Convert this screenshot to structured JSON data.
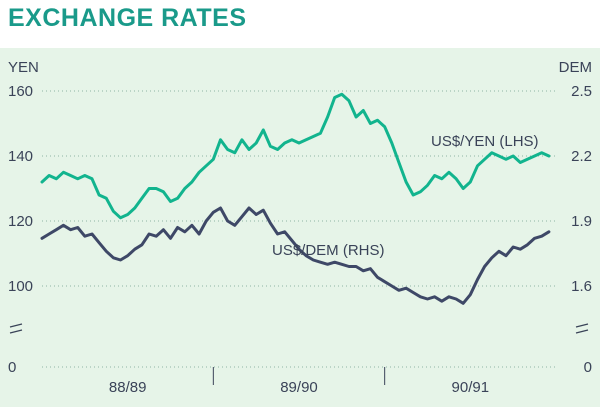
{
  "title": "EXCHANGE RATES",
  "colors": {
    "panel": "#e6f4e8",
    "yen_line": "#12b48e",
    "dem_line": "#3e4867",
    "text": "#3a4358",
    "title": "#1a9a8a"
  },
  "chart_data": {
    "type": "line",
    "title": "EXCHANGE RATES",
    "left_axis": {
      "label": "YEN",
      "ticks": [
        {
          "value": 160,
          "label": "160"
        },
        {
          "value": 140,
          "label": "140"
        },
        {
          "value": 120,
          "label": "120"
        },
        {
          "value": 100,
          "label": "100"
        }
      ],
      "zero_label": "0",
      "break_mark": "="
    },
    "right_axis": {
      "label": "DEM",
      "ticks": [
        {
          "value": 2.5,
          "label": "2.5"
        },
        {
          "value": 2.2,
          "label": "2.2"
        },
        {
          "value": 1.9,
          "label": "1.9"
        },
        {
          "value": 1.6,
          "label": "1.6"
        }
      ],
      "zero_label": "0",
      "break_mark": "="
    },
    "x_axis": {
      "range": [
        0,
        36
      ],
      "period_labels": [
        {
          "label": "88/89",
          "center": 6
        },
        {
          "label": "89/90",
          "center": 18
        },
        {
          "label": "90/91",
          "center": 30
        }
      ],
      "period_dividers": [
        12,
        24
      ]
    },
    "grid": "dotted-horizontal",
    "series": [
      {
        "name": "US$/YEN (LHS)",
        "axis": "left",
        "points": [
          [
            0,
            132
          ],
          [
            0.5,
            134
          ],
          [
            1,
            133
          ],
          [
            1.5,
            135
          ],
          [
            2,
            134
          ],
          [
            2.5,
            133
          ],
          [
            3,
            134
          ],
          [
            3.5,
            133
          ],
          [
            4,
            128
          ],
          [
            4.5,
            127
          ],
          [
            5,
            123
          ],
          [
            5.5,
            121
          ],
          [
            6,
            122
          ],
          [
            6.5,
            124
          ],
          [
            7,
            127
          ],
          [
            7.5,
            130
          ],
          [
            8,
            130
          ],
          [
            8.5,
            129
          ],
          [
            9,
            126
          ],
          [
            9.5,
            127
          ],
          [
            10,
            130
          ],
          [
            10.5,
            132
          ],
          [
            11,
            135
          ],
          [
            11.5,
            137
          ],
          [
            12,
            139
          ],
          [
            12.5,
            145
          ],
          [
            13,
            142
          ],
          [
            13.5,
            141
          ],
          [
            14,
            145
          ],
          [
            14.5,
            142
          ],
          [
            15,
            144
          ],
          [
            15.5,
            148
          ],
          [
            16,
            143
          ],
          [
            16.5,
            142
          ],
          [
            17,
            144
          ],
          [
            17.5,
            145
          ],
          [
            18,
            144
          ],
          [
            18.5,
            145
          ],
          [
            19,
            146
          ],
          [
            19.5,
            147
          ],
          [
            20,
            152
          ],
          [
            20.5,
            158
          ],
          [
            21,
            159
          ],
          [
            21.5,
            157
          ],
          [
            22,
            152
          ],
          [
            22.5,
            154
          ],
          [
            23,
            150
          ],
          [
            23.5,
            151
          ],
          [
            24,
            149
          ],
          [
            24.5,
            144
          ],
          [
            25,
            138
          ],
          [
            25.5,
            132
          ],
          [
            26,
            128
          ],
          [
            26.5,
            129
          ],
          [
            27,
            131
          ],
          [
            27.5,
            134
          ],
          [
            28,
            133
          ],
          [
            28.5,
            135
          ],
          [
            29,
            133
          ],
          [
            29.5,
            130
          ],
          [
            30,
            132
          ],
          [
            30.5,
            137
          ],
          [
            31,
            139
          ],
          [
            31.5,
            141
          ],
          [
            32,
            140
          ],
          [
            32.5,
            139
          ],
          [
            33,
            140
          ],
          [
            33.5,
            138
          ],
          [
            34,
            139
          ],
          [
            34.5,
            140
          ],
          [
            35,
            141
          ],
          [
            35.5,
            140
          ]
        ]
      },
      {
        "name": "US$/DEM (RHS)",
        "axis": "right",
        "points": [
          [
            0,
            1.82
          ],
          [
            0.5,
            1.84
          ],
          [
            1,
            1.86
          ],
          [
            1.5,
            1.88
          ],
          [
            2,
            1.86
          ],
          [
            2.5,
            1.87
          ],
          [
            3,
            1.83
          ],
          [
            3.5,
            1.84
          ],
          [
            4,
            1.8
          ],
          [
            4.5,
            1.76
          ],
          [
            5,
            1.73
          ],
          [
            5.5,
            1.72
          ],
          [
            6,
            1.74
          ],
          [
            6.5,
            1.77
          ],
          [
            7,
            1.79
          ],
          [
            7.5,
            1.84
          ],
          [
            8,
            1.83
          ],
          [
            8.5,
            1.86
          ],
          [
            9,
            1.82
          ],
          [
            9.5,
            1.87
          ],
          [
            10,
            1.85
          ],
          [
            10.5,
            1.88
          ],
          [
            11,
            1.84
          ],
          [
            11.5,
            1.9
          ],
          [
            12,
            1.94
          ],
          [
            12.5,
            1.96
          ],
          [
            13,
            1.9
          ],
          [
            13.5,
            1.88
          ],
          [
            14,
            1.92
          ],
          [
            14.5,
            1.96
          ],
          [
            15,
            1.93
          ],
          [
            15.5,
            1.95
          ],
          [
            16,
            1.89
          ],
          [
            16.5,
            1.84
          ],
          [
            17,
            1.85
          ],
          [
            17.5,
            1.81
          ],
          [
            18,
            1.77
          ],
          [
            18.5,
            1.74
          ],
          [
            19,
            1.72
          ],
          [
            19.5,
            1.71
          ],
          [
            20,
            1.7
          ],
          [
            20.5,
            1.71
          ],
          [
            21,
            1.7
          ],
          [
            21.5,
            1.69
          ],
          [
            22,
            1.69
          ],
          [
            22.5,
            1.67
          ],
          [
            23,
            1.68
          ],
          [
            23.5,
            1.64
          ],
          [
            24,
            1.62
          ],
          [
            24.5,
            1.6
          ],
          [
            25,
            1.58
          ],
          [
            25.5,
            1.59
          ],
          [
            26,
            1.57
          ],
          [
            26.5,
            1.55
          ],
          [
            27,
            1.54
          ],
          [
            27.5,
            1.55
          ],
          [
            28,
            1.53
          ],
          [
            28.5,
            1.55
          ],
          [
            29,
            1.54
          ],
          [
            29.5,
            1.52
          ],
          [
            30,
            1.56
          ],
          [
            30.5,
            1.63
          ],
          [
            31,
            1.69
          ],
          [
            31.5,
            1.73
          ],
          [
            32,
            1.76
          ],
          [
            32.5,
            1.74
          ],
          [
            33,
            1.78
          ],
          [
            33.5,
            1.77
          ],
          [
            34,
            1.79
          ],
          [
            34.5,
            1.82
          ],
          [
            35,
            1.83
          ],
          [
            35.5,
            1.85
          ]
        ]
      }
    ]
  }
}
